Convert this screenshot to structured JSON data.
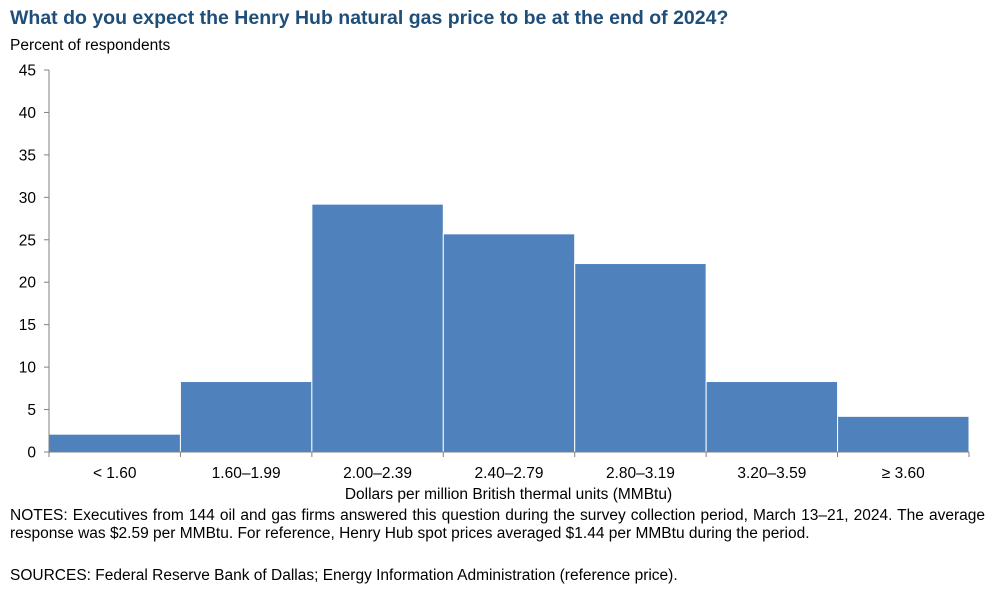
{
  "title": "What do you expect the Henry Hub natural gas price to be at the end of 2024?",
  "notes": "NOTES: Executives from 144 oil and gas firms answered this question during the survey collection period, March 13–21, 2024. The average response was $2.59 per MMBtu. For reference, Henry Hub spot prices averaged $1.44 per MMBtu during the period.",
  "sources": "SOURCES: Federal Reserve Bank of Dallas; Energy Information Administration (reference price).",
  "colors": {
    "bar": "#4f81bd",
    "title": "#1f4e79"
  },
  "chart_data": {
    "type": "bar",
    "title": "What do you expect the Henry Hub natural gas price to be at the end of 2024?",
    "ylabel": "Percent of respondents",
    "xlabel": "Dollars per million British thermal units (MMBtu)",
    "categories": [
      "< 1.60",
      "1.60–1.99",
      "2.00–2.39",
      "2.40–2.79",
      "2.80–3.19",
      "3.20–3.59",
      "≥ 3.60"
    ],
    "values": [
      2.1,
      8.3,
      29.2,
      25.7,
      22.2,
      8.3,
      4.2
    ],
    "ylim": [
      0,
      45
    ],
    "yticks": [
      "0",
      "5",
      "10",
      "15",
      "20",
      "25",
      "30",
      "35",
      "40",
      "45"
    ],
    "grid": false,
    "legend": "none"
  }
}
